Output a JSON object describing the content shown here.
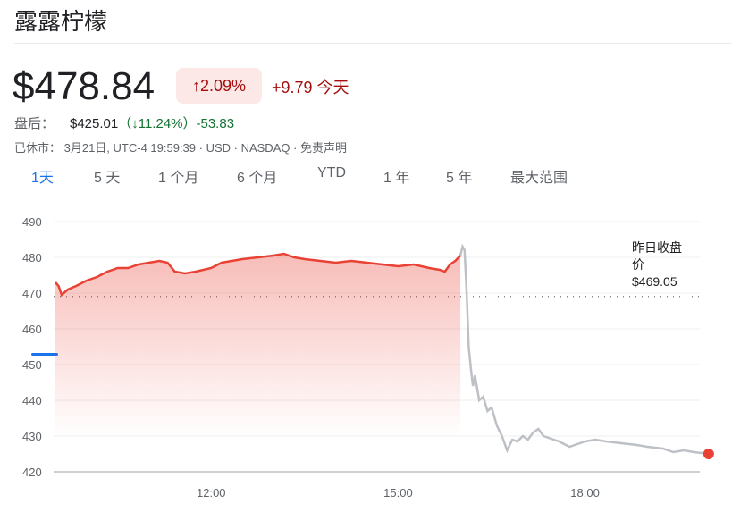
{
  "title": "露露柠檬",
  "quote": {
    "price": "$478.84",
    "pct": "↑2.09%",
    "change": "+9.79 今天"
  },
  "after_hours": {
    "label": "盘后：",
    "price": "$425.01",
    "pct": "（↓11.24%）",
    "change": "-53.83"
  },
  "meta": "已休市： 3月21日, UTC-4 19:59:39 · USD · NASDAQ · 免责声明",
  "tabs": [
    "1天",
    "5 天",
    "1 个月",
    "6 个月",
    "YTD",
    "1 年",
    "5 年",
    "最大范围"
  ],
  "active_tab": 0,
  "chart_data": {
    "type": "area",
    "yticks": [
      490,
      480,
      470,
      460,
      450,
      440,
      430,
      420
    ],
    "ylim": [
      420,
      490
    ],
    "xticks": [
      "12:00",
      "15:00",
      "18:00"
    ],
    "xlim": [
      "09:30",
      "20:00"
    ],
    "previous_close": {
      "label_line1": "昨日收盘",
      "label_line2": "价",
      "value_label": "$469.05",
      "value": 469.05
    },
    "colors": {
      "regular": "#e94235",
      "after_hours": "#bdc1c6",
      "last_point": "#e94235"
    },
    "series": [
      {
        "session": "regular",
        "points": [
          [
            "09:30",
            473
          ],
          [
            "09:33",
            472
          ],
          [
            "09:36",
            469.5
          ],
          [
            "09:42",
            471
          ],
          [
            "09:50",
            472
          ],
          [
            "10:00",
            473.5
          ],
          [
            "10:10",
            474.5
          ],
          [
            "10:20",
            476
          ],
          [
            "10:30",
            477
          ],
          [
            "10:40",
            477
          ],
          [
            "10:50",
            478
          ],
          [
            "11:00",
            478.5
          ],
          [
            "11:10",
            479
          ],
          [
            "11:18",
            478.5
          ],
          [
            "11:25",
            476
          ],
          [
            "11:35",
            475.5
          ],
          [
            "11:45",
            476
          ],
          [
            "12:00",
            477
          ],
          [
            "12:10",
            478.5
          ],
          [
            "12:20",
            479
          ],
          [
            "12:30",
            479.5
          ],
          [
            "12:45",
            480
          ],
          [
            "13:00",
            480.5
          ],
          [
            "13:10",
            481
          ],
          [
            "13:20",
            480
          ],
          [
            "13:30",
            479.5
          ],
          [
            "13:45",
            479
          ],
          [
            "14:00",
            478.5
          ],
          [
            "14:15",
            479
          ],
          [
            "14:30",
            478.5
          ],
          [
            "14:45",
            478
          ],
          [
            "15:00",
            477.5
          ],
          [
            "15:15",
            478
          ],
          [
            "15:30",
            477
          ],
          [
            "15:40",
            476.5
          ],
          [
            "15:45",
            476
          ],
          [
            "15:50",
            478
          ],
          [
            "15:55",
            479
          ],
          [
            "16:00",
            480.5
          ]
        ]
      },
      {
        "session": "after_hours",
        "points": [
          [
            "16:00",
            480.5
          ],
          [
            "16:02",
            483
          ],
          [
            "16:04",
            482
          ],
          [
            "16:06",
            470
          ],
          [
            "16:08",
            455
          ],
          [
            "16:10",
            449
          ],
          [
            "16:12",
            444
          ],
          [
            "16:14",
            447
          ],
          [
            "16:18",
            440
          ],
          [
            "16:22",
            441
          ],
          [
            "16:26",
            437
          ],
          [
            "16:30",
            438
          ],
          [
            "16:35",
            433
          ],
          [
            "16:40",
            430
          ],
          [
            "16:45",
            426
          ],
          [
            "16:50",
            429
          ],
          [
            "16:55",
            428.5
          ],
          [
            "17:00",
            430
          ],
          [
            "17:05",
            429
          ],
          [
            "17:10",
            431
          ],
          [
            "17:15",
            432
          ],
          [
            "17:20",
            430
          ],
          [
            "17:25",
            429.5
          ],
          [
            "17:35",
            428.5
          ],
          [
            "17:45",
            427
          ],
          [
            "17:55",
            428
          ],
          [
            "18:00",
            428.5
          ],
          [
            "18:10",
            429
          ],
          [
            "18:20",
            428.5
          ],
          [
            "18:35",
            428
          ],
          [
            "18:50",
            427.5
          ],
          [
            "19:00",
            427
          ],
          [
            "19:15",
            426.5
          ],
          [
            "19:25",
            425.5
          ],
          [
            "19:35",
            426
          ],
          [
            "19:45",
            425.5
          ],
          [
            "19:59",
            425.01
          ]
        ]
      }
    ]
  }
}
